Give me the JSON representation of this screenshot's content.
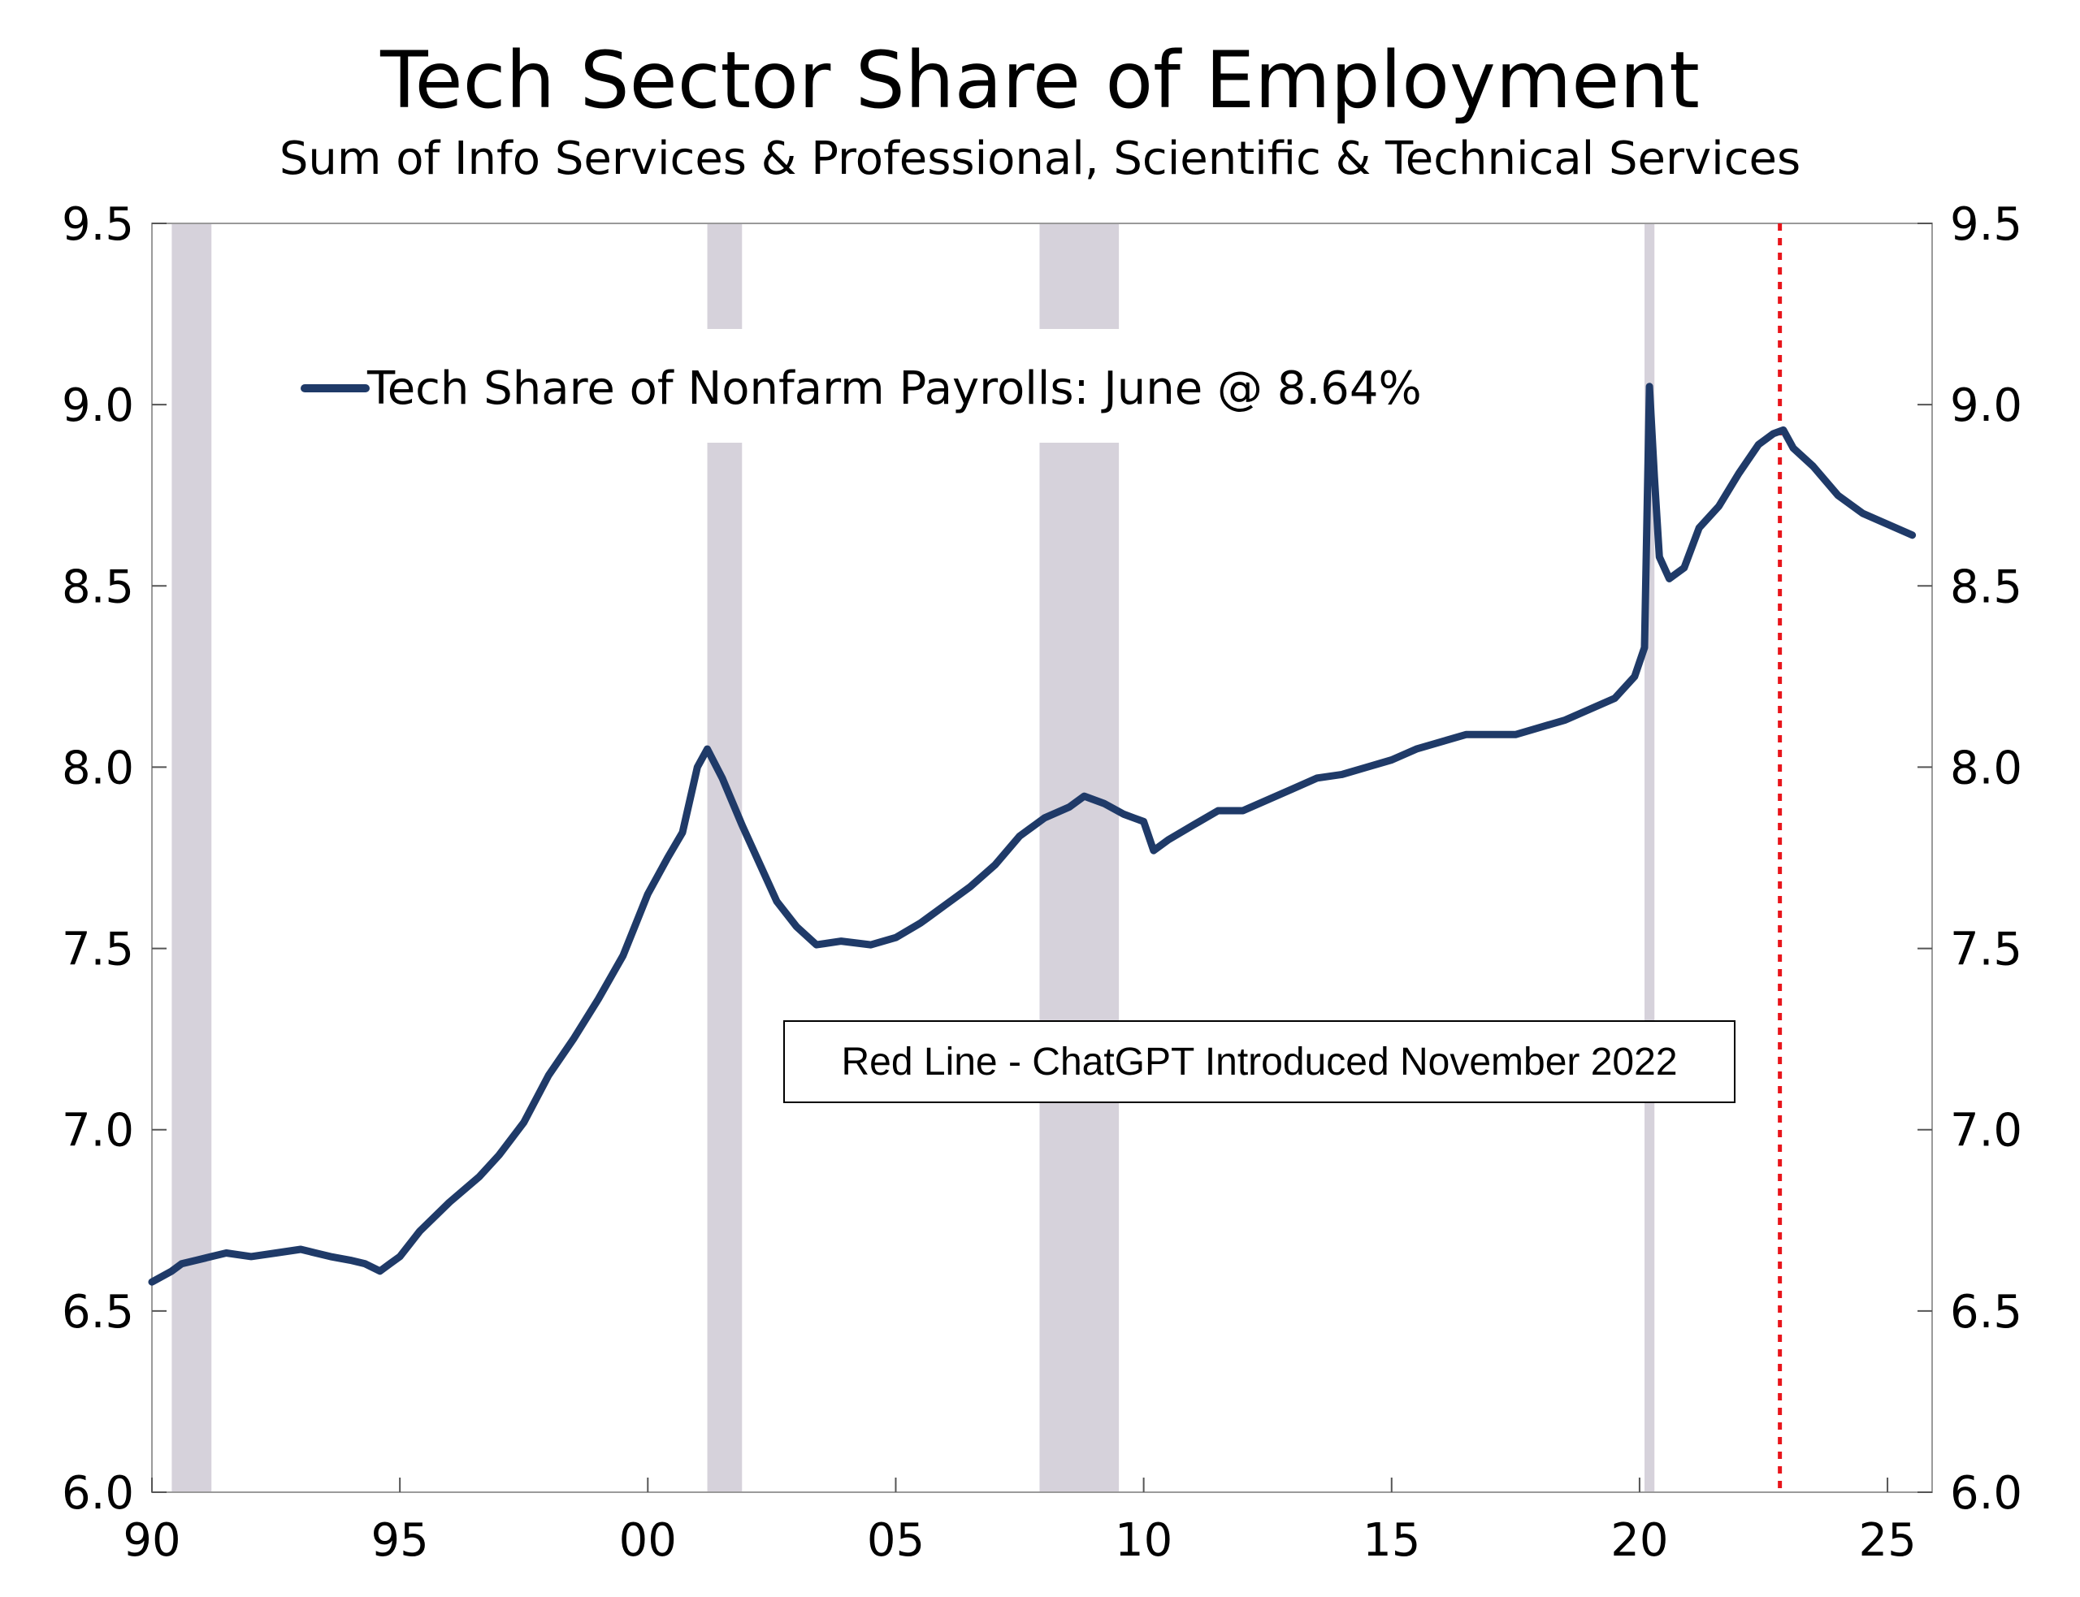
{
  "chart_data": {
    "type": "line",
    "title": "Tech Sector Share of Employment",
    "subtitle": "Sum of Info Services & Professional, Scientific & Technical Services",
    "xlabel": "",
    "ylabel": "",
    "xlim": [
      1990.0,
      2025.9
    ],
    "ylim": [
      6.0,
      9.5
    ],
    "y_ticks": [
      6.0,
      6.5,
      7.0,
      7.5,
      8.0,
      8.5,
      9.0,
      9.5
    ],
    "y_tick_labels": [
      "6.0",
      "6.5",
      "7.0",
      "7.5",
      "8.0",
      "8.5",
      "9.0",
      "9.5"
    ],
    "x_ticks": [
      1990,
      1995,
      2000,
      2005,
      2010,
      2015,
      2020,
      2025
    ],
    "x_tick_labels": [
      "90",
      "95",
      "00",
      "05",
      "10",
      "15",
      "20",
      "25"
    ],
    "dual_y_axis": true,
    "grid": false,
    "legend_position": "top-left",
    "recession_shading": [
      {
        "start": 1990.4,
        "end": 1991.2
      },
      {
        "start": 2001.2,
        "end": 2001.9
      },
      {
        "start": 2007.9,
        "end": 2009.5
      },
      {
        "start": 2020.1,
        "end": 2020.3
      }
    ],
    "reference_lines": [
      {
        "x": 2022.83,
        "color": "#e8151b",
        "style": "dotted"
      }
    ],
    "annotations": [
      {
        "text": "Red Line - ChatGPT Introduced November 2022"
      }
    ],
    "series": [
      {
        "name": "Tech Share of Nonfarm Payrolls: June @ 8.64%",
        "color": "#1f3a68",
        "x": [
          1990.0,
          1990.4,
          1990.6,
          1990.9,
          1991.2,
          1991.5,
          1992.0,
          1992.5,
          1993.0,
          1993.3,
          1993.6,
          1994.0,
          1994.3,
          1994.6,
          1994.8,
          1995.0,
          1995.4,
          1996.0,
          1996.6,
          1997.0,
          1997.5,
          1998.0,
          1998.5,
          1999.0,
          1999.5,
          2000.0,
          2000.4,
          2000.7,
          2000.9,
          2001.0,
          2001.2,
          2001.5,
          2001.9,
          2002.3,
          2002.6,
          2003.0,
          2003.4,
          2003.9,
          2004.5,
          2005.0,
          2005.5,
          2006.0,
          2006.5,
          2007.0,
          2007.5,
          2008.0,
          2008.5,
          2008.8,
          2009.2,
          2009.6,
          2010.0,
          2010.2,
          2010.5,
          2011.0,
          2011.5,
          2012.0,
          2012.5,
          2013.0,
          2013.5,
          2014.0,
          2014.5,
          2015.0,
          2015.5,
          2016.0,
          2016.5,
          2017.0,
          2017.5,
          2018.0,
          2018.5,
          2019.0,
          2019.5,
          2019.9,
          2020.1,
          2020.2,
          2020.3,
          2020.4,
          2020.6,
          2020.9,
          2021.2,
          2021.6,
          2022.0,
          2022.4,
          2022.7,
          2022.9,
          2023.1,
          2023.5,
          2024.0,
          2024.5,
          2025.0,
          2025.5
        ],
        "values": [
          6.58,
          6.61,
          6.63,
          6.64,
          6.65,
          6.66,
          6.65,
          6.66,
          6.67,
          6.66,
          6.65,
          6.64,
          6.63,
          6.61,
          6.63,
          6.65,
          6.72,
          6.8,
          6.87,
          6.93,
          7.02,
          7.15,
          7.25,
          7.36,
          7.48,
          7.65,
          7.75,
          7.82,
          7.94,
          8.0,
          8.05,
          7.97,
          7.84,
          7.72,
          7.63,
          7.56,
          7.51,
          7.52,
          7.51,
          7.53,
          7.57,
          7.62,
          7.67,
          7.73,
          7.81,
          7.86,
          7.89,
          7.92,
          7.9,
          7.87,
          7.85,
          7.77,
          7.8,
          7.84,
          7.88,
          7.88,
          7.91,
          7.94,
          7.97,
          7.98,
          8.0,
          8.02,
          8.05,
          8.07,
          8.09,
          8.09,
          8.09,
          8.11,
          8.13,
          8.16,
          8.19,
          8.25,
          8.33,
          9.05,
          8.8,
          8.58,
          8.52,
          8.55,
          8.66,
          8.72,
          8.81,
          8.89,
          8.92,
          8.93,
          8.88,
          8.83,
          8.75,
          8.7,
          8.67,
          8.64
        ]
      }
    ]
  }
}
